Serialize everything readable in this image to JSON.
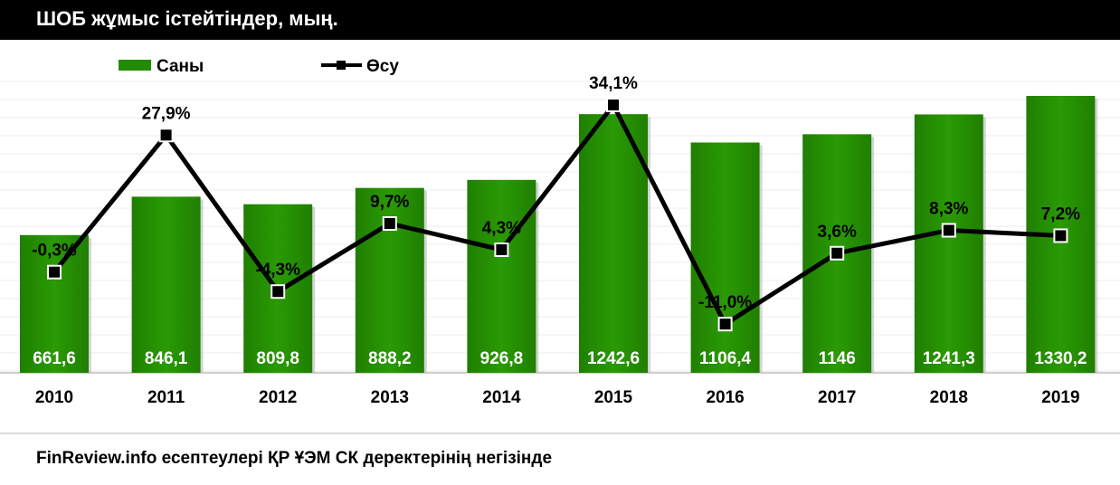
{
  "title": "ШОБ жұмыс істейтіндер, мың.",
  "source": "FinReview.info есептеулері ҚР ҰЭМ СК деректерінің негізінде",
  "colors": {
    "bar": "#228B00",
    "line": "#000000",
    "title_bg": "#000000"
  },
  "chart_data": {
    "type": "bar",
    "title": "ШОБ жұмыс істейтіндер, мың.",
    "categories": [
      "2010",
      "2011",
      "2012",
      "2013",
      "2014",
      "2015",
      "2016",
      "2017",
      "2018",
      "2019"
    ],
    "legend": {
      "position": "top-left",
      "items": [
        "Саны",
        "Өсу"
      ]
    },
    "series": [
      {
        "name": "Саны",
        "type": "bar",
        "values": [
          661.6,
          846.1,
          809.8,
          888.2,
          926.8,
          1242.6,
          1106.4,
          1146,
          1241.3,
          1330.2
        ],
        "labels": [
          "661,6",
          "846,1",
          "809,8",
          "888,2",
          "926,8",
          "1242,6",
          "1106,4",
          "1146",
          "1241,3",
          "1330,2"
        ]
      },
      {
        "name": "Өсу",
        "type": "line",
        "values": [
          -0.3,
          27.9,
          -4.3,
          9.7,
          4.3,
          34.1,
          -11.0,
          3.6,
          8.3,
          7.2
        ],
        "labels": [
          "-0,3%",
          "27,9%",
          "-4,3%",
          "9,7%",
          "4,3%",
          "34,1%",
          "-11,0%",
          "3,6%",
          "8,3%",
          "7,2%"
        ]
      }
    ],
    "grid": true
  }
}
